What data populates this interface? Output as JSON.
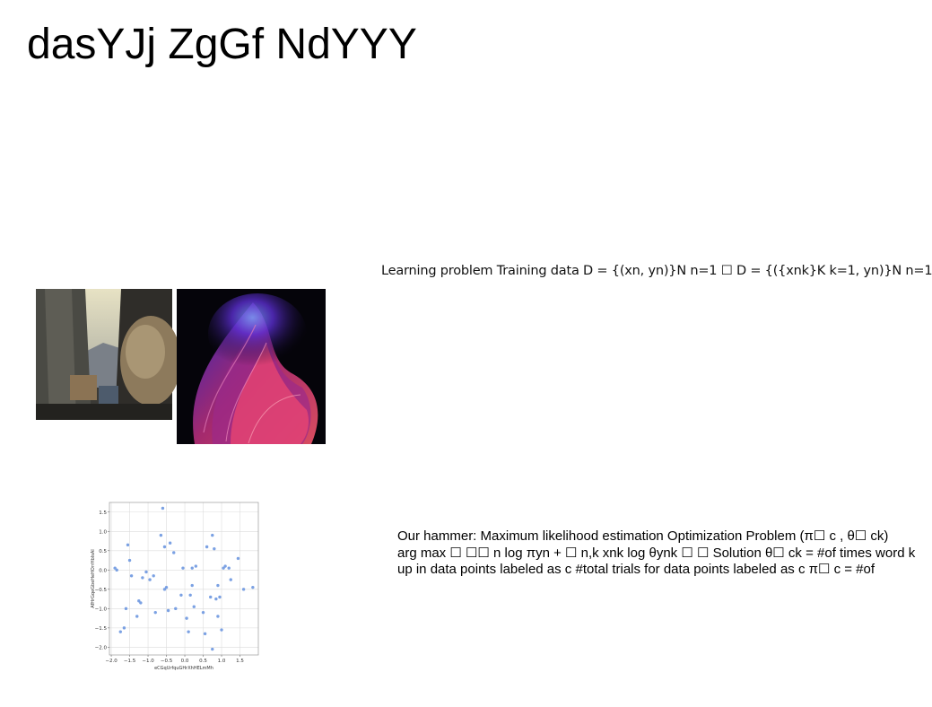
{
  "slide": {
    "title": "dasYJj ZgGf NdYYY",
    "learning_text": "Learning problem Training data D = {(xn, yn)}N n=1 ☐ D = {({xnk}K k=1, yn)}N n=1",
    "hammer_lines": [
      "Our hammer: Maximum likelihood estimation Optimization Problem (π☐ c , θ☐ ck)",
      "arg max ☐ ☐☐ n log πyn + ☐ n,k xnk log θynk ☐ ☐ Solution θ☐ ck = #of times word k",
      "up in data points labeled as c #total trials for data points labeled as c π☐ c = #of"
    ]
  },
  "colors": {
    "point": "#6d97e0",
    "grid": "#dcdcdc"
  },
  "chart_data": {
    "type": "scatter",
    "xlabel": "eCGqUrfquGHrXhHELmMh",
    "ylabel": "AfHrGqeGbeHeHOrrHbIsAI",
    "xlim": [
      -2.05,
      2.0
    ],
    "ylim": [
      -2.2,
      1.75
    ],
    "x_ticks": [
      -2.0,
      -1.5,
      -1.0,
      -0.5,
      0.0,
      0.5,
      1.0,
      1.5
    ],
    "x_tick_labels": [
      "−2.0",
      "−1.5",
      "−1.0",
      "−0.5",
      "0.0",
      "0.5",
      "1.0",
      "1.5"
    ],
    "y_ticks": [
      1.5,
      1.0,
      0.5,
      0.0,
      -0.5,
      -1.0,
      -1.5,
      -2.0
    ],
    "y_tick_labels": [
      "1.5",
      "1.0",
      "0.5",
      "0.0",
      "−0.5",
      "−1.0",
      "−1.5",
      "−2.0"
    ],
    "grid": true,
    "x": [
      -1.9,
      -1.85,
      -1.75,
      -1.65,
      -1.6,
      -1.55,
      -1.5,
      -1.45,
      -1.3,
      -1.25,
      -1.2,
      -1.15,
      -1.05,
      -0.95,
      -0.85,
      -0.8,
      -0.65,
      -0.6,
      -0.55,
      -0.55,
      -0.5,
      -0.45,
      -0.4,
      -0.3,
      -0.25,
      -0.1,
      -0.05,
      0.05,
      0.1,
      0.15,
      0.2,
      0.2,
      0.25,
      0.3,
      0.5,
      0.55,
      0.6,
      0.7,
      0.75,
      0.75,
      0.8,
      0.85,
      0.9,
      0.9,
      0.95,
      1.0,
      1.05,
      1.1,
      1.2,
      1.25,
      1.45,
      1.6,
      1.85
    ],
    "y": [
      0.05,
      0.0,
      -1.6,
      -1.5,
      -1.0,
      0.65,
      0.25,
      -0.15,
      -1.2,
      -0.8,
      -0.85,
      -0.2,
      -0.05,
      -0.25,
      -0.15,
      -1.1,
      0.9,
      1.6,
      -0.5,
      0.6,
      -0.45,
      -1.05,
      0.7,
      0.45,
      -1.0,
      -0.65,
      0.05,
      -1.25,
      -1.6,
      -0.65,
      -0.4,
      0.05,
      -0.95,
      0.1,
      -1.1,
      -1.65,
      0.6,
      -0.7,
      -2.05,
      0.9,
      0.55,
      -0.75,
      -0.4,
      -1.2,
      -0.7,
      -1.55,
      0.05,
      0.1,
      0.05,
      -0.25,
      0.3,
      -0.5,
      -0.45
    ]
  }
}
